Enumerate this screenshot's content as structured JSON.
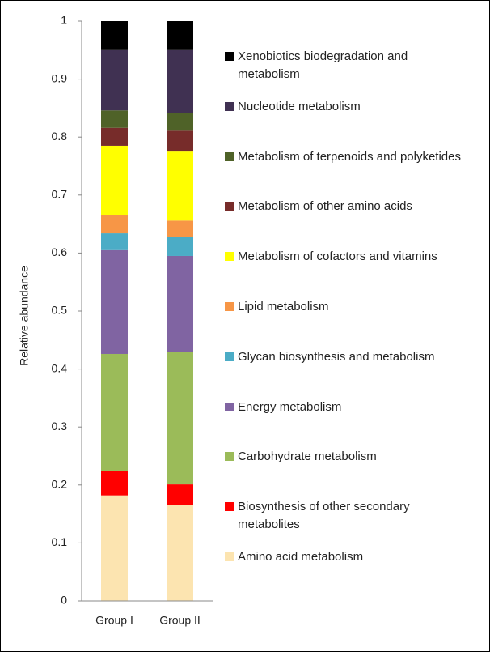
{
  "chart_data": {
    "type": "stacked_bar",
    "y_label": "Relative abundance",
    "categories": [
      "Group I",
      "Group II"
    ],
    "ylim": [
      0,
      1
    ],
    "yticks": [
      0,
      0.1,
      0.2,
      0.3,
      0.4,
      0.5,
      0.6,
      0.7,
      0.8,
      0.9,
      1
    ],
    "series": [
      {
        "name": "Amino acid metabolism",
        "color": "#fce4b0",
        "values": [
          0.182,
          0.165
        ]
      },
      {
        "name": "Biosynthesis of other secondary metabolites",
        "color": "#ff0000",
        "values": [
          0.042,
          0.036
        ]
      },
      {
        "name": "Carbohydrate metabolism",
        "color": "#9bbb59",
        "values": [
          0.202,
          0.229
        ]
      },
      {
        "name": "Energy metabolism",
        "color": "#8064a2",
        "values": [
          0.179,
          0.165
        ]
      },
      {
        "name": "Glycan biosynthesis and metabolism",
        "color": "#4bacc6",
        "values": [
          0.029,
          0.033
        ]
      },
      {
        "name": "Lipid metabolism",
        "color": "#f79646",
        "values": [
          0.032,
          0.028
        ]
      },
      {
        "name": "Metabolism of cofactors and vitamins",
        "color": "#ffff00",
        "values": [
          0.119,
          0.119
        ]
      },
      {
        "name": "Metabolism of other amino acids",
        "color": "#772c2a",
        "values": [
          0.031,
          0.036
        ]
      },
      {
        "name": "Metabolism of terpenoids and polyketides",
        "color": "#4f6228",
        "values": [
          0.03,
          0.03
        ]
      },
      {
        "name": "Nucleotide metabolism",
        "color": "#403152",
        "values": [
          0.104,
          0.109
        ]
      },
      {
        "name": "Xenobiotics biodegradation and metabolism",
        "color": "#000000",
        "values": [
          0.05,
          0.05
        ]
      }
    ]
  }
}
